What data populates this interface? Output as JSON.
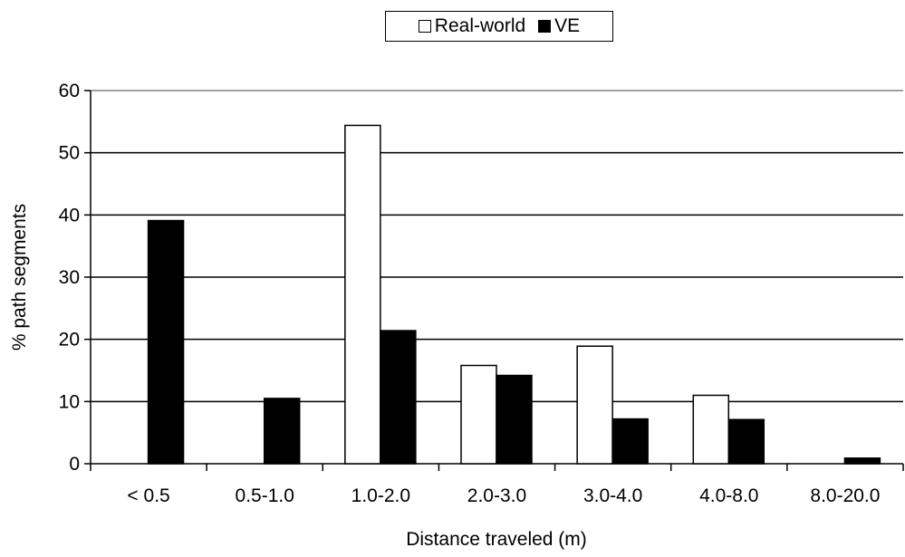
{
  "chart_data": {
    "type": "bar",
    "categories": [
      "< 0.5",
      "0.5-1.0",
      "1.0-2.0",
      "2.0-3.0",
      "3.0-4.0",
      "4.0-8.0",
      "8.0-20.0"
    ],
    "series": [
      {
        "name": "Real-world",
        "values": [
          0,
          0,
          54.4,
          15.8,
          18.9,
          11.0,
          0
        ],
        "color": "#ffffff"
      },
      {
        "name": "VE",
        "values": [
          39.1,
          10.5,
          21.4,
          14.2,
          7.2,
          7.1,
          0.9
        ],
        "color": "#000000"
      }
    ],
    "title": "",
    "xlabel": "Distance traveled (m)",
    "ylabel": "% path segments",
    "ylim": [
      0,
      60
    ],
    "yticks": [
      0,
      10,
      20,
      30,
      40,
      50,
      60
    ],
    "grid": true,
    "legend": "top"
  }
}
